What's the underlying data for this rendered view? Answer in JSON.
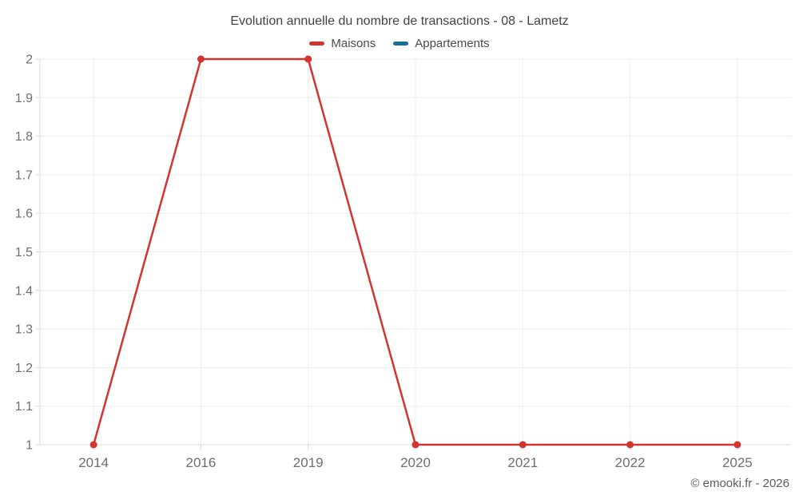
{
  "title": "Evolution annuelle du nombre de transactions - 08 - Lametz",
  "footer": "© emooki.fr - 2026",
  "legend": [
    {
      "label": "Maisons",
      "color": "#d3342f"
    },
    {
      "label": "Appartements",
      "color": "#1b6d9e"
    }
  ],
  "colors": {
    "grid": "#ededed",
    "axis": "#d9d9d9",
    "tick_text": "#6e6e6e",
    "title_text": "#424242",
    "footer_text": "#5a5a5a",
    "maisons_red": "#d3342f",
    "appartements_blue": "#1b6d9e"
  },
  "chart_data": {
    "type": "line",
    "title": "Evolution annuelle du nombre de transactions - 08 - Lametz",
    "categories": [
      "2014",
      "2016",
      "2019",
      "2020",
      "2021",
      "2022",
      "2025"
    ],
    "series": [
      {
        "name": "Maisons",
        "color": "#d3342f",
        "values": [
          1,
          2,
          2,
          1,
          1,
          1,
          1
        ]
      },
      {
        "name": "Appartements",
        "color": "#1b6d9e",
        "values": []
      }
    ],
    "xlabel": "",
    "ylabel": "",
    "ylim": [
      1,
      2
    ],
    "ytick_step": 0.1,
    "ytick_labels": [
      "1",
      "1.1",
      "1.2",
      "1.3",
      "1.4",
      "1.5",
      "1.6",
      "1.7",
      "1.8",
      "1.9",
      "2"
    ],
    "grid": true,
    "legend_position": "top"
  }
}
